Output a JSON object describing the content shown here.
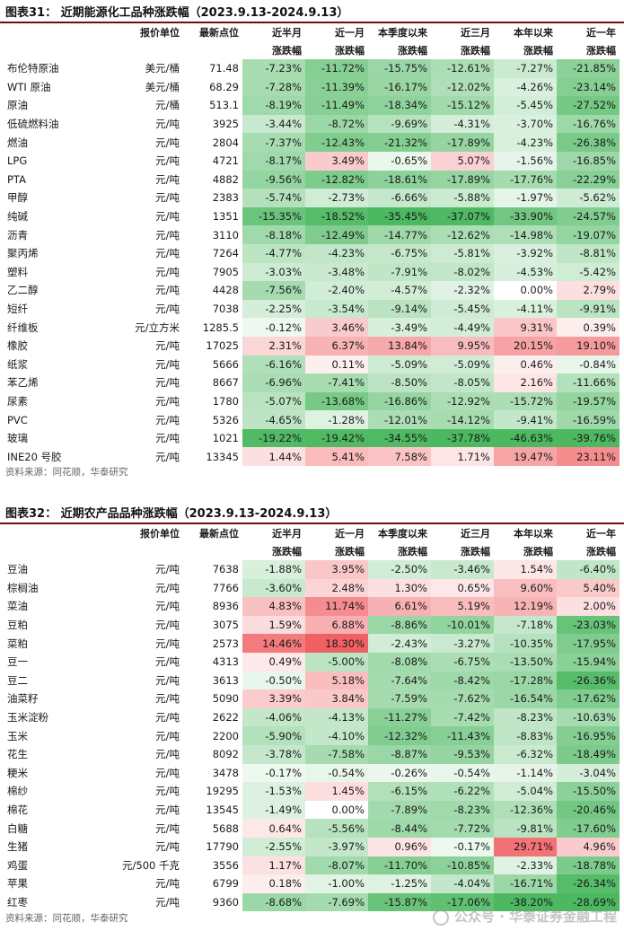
{
  "table1": {
    "title": "图表31：   近期能源化工品种涨跌幅（2023.9.13-2024.9.13）",
    "source": "资料来源：同花顺，华泰研究",
    "headers_top": [
      "",
      "报价单位",
      "最新点位",
      "近半月",
      "近一月",
      "本季度以来",
      "近三月",
      "本年以来",
      "近一年"
    ],
    "headers_bottom": [
      "",
      "",
      "",
      "涨跌幅",
      "涨跌幅",
      "涨跌幅",
      "涨跌幅",
      "涨跌幅",
      "涨跌幅"
    ],
    "rows": [
      {
        "name": "布伦特原油",
        "unit": "美元/桶",
        "last": "71.48",
        "vals": [
          "-7.23%",
          "-11.72%",
          "-15.75%",
          "-12.61%",
          "-7.27%",
          "-21.85%"
        ]
      },
      {
        "name": "WTI 原油",
        "unit": "美元/桶",
        "last": "68.29",
        "vals": [
          "-7.28%",
          "-11.39%",
          "-16.17%",
          "-12.02%",
          "-4.26%",
          "-23.14%"
        ]
      },
      {
        "name": "原油",
        "unit": "元/桶",
        "last": "513.1",
        "vals": [
          "-8.19%",
          "-11.49%",
          "-18.34%",
          "-15.12%",
          "-5.45%",
          "-27.52%"
        ]
      },
      {
        "name": "低硫燃料油",
        "unit": "元/吨",
        "last": "3925",
        "vals": [
          "-3.44%",
          "-8.72%",
          "-9.69%",
          "-4.31%",
          "-3.70%",
          "-16.76%"
        ]
      },
      {
        "name": "燃油",
        "unit": "元/吨",
        "last": "2804",
        "vals": [
          "-7.37%",
          "-12.43%",
          "-21.32%",
          "-17.89%",
          "-4.23%",
          "-26.38%"
        ]
      },
      {
        "name": "LPG",
        "unit": "元/吨",
        "last": "4721",
        "vals": [
          "-8.17%",
          "3.49%",
          "-0.65%",
          "5.07%",
          "-1.56%",
          "-16.85%"
        ]
      },
      {
        "name": "PTA",
        "unit": "元/吨",
        "last": "4882",
        "vals": [
          "-9.56%",
          "-12.82%",
          "-18.61%",
          "-17.89%",
          "-17.76%",
          "-22.29%"
        ]
      },
      {
        "name": "甲醇",
        "unit": "元/吨",
        "last": "2383",
        "vals": [
          "-5.74%",
          "-2.73%",
          "-6.66%",
          "-5.88%",
          "-1.97%",
          "-5.62%"
        ]
      },
      {
        "name": "纯碱",
        "unit": "元/吨",
        "last": "1351",
        "vals": [
          "-15.35%",
          "-18.52%",
          "-35.45%",
          "-37.07%",
          "-33.90%",
          "-24.57%"
        ]
      },
      {
        "name": "沥青",
        "unit": "元/吨",
        "last": "3110",
        "vals": [
          "-8.18%",
          "-12.49%",
          "-14.77%",
          "-12.62%",
          "-14.98%",
          "-19.07%"
        ]
      },
      {
        "name": "聚丙烯",
        "unit": "元/吨",
        "last": "7264",
        "vals": [
          "-4.77%",
          "-4.23%",
          "-6.75%",
          "-5.81%",
          "-3.92%",
          "-8.81%"
        ]
      },
      {
        "name": "塑料",
        "unit": "元/吨",
        "last": "7905",
        "vals": [
          "-3.03%",
          "-3.48%",
          "-7.91%",
          "-8.02%",
          "-4.53%",
          "-5.42%"
        ]
      },
      {
        "name": "乙二醇",
        "unit": "元/吨",
        "last": "4428",
        "vals": [
          "-7.56%",
          "-2.40%",
          "-4.57%",
          "-2.32%",
          "0.00%",
          "2.79%"
        ]
      },
      {
        "name": "短纤",
        "unit": "元/吨",
        "last": "7038",
        "vals": [
          "-2.25%",
          "-3.54%",
          "-9.14%",
          "-5.45%",
          "-4.11%",
          "-9.91%"
        ]
      },
      {
        "name": "纤维板",
        "unit": "元/立方米",
        "last": "1285.5",
        "vals": [
          "-0.12%",
          "3.46%",
          "-3.49%",
          "-4.49%",
          "9.31%",
          "0.39%"
        ]
      },
      {
        "name": "橡胶",
        "unit": "元/吨",
        "last": "17025",
        "vals": [
          "2.31%",
          "6.37%",
          "13.84%",
          "9.95%",
          "20.15%",
          "19.10%"
        ]
      },
      {
        "name": "纸浆",
        "unit": "元/吨",
        "last": "5666",
        "vals": [
          "-6.16%",
          "0.11%",
          "-5.09%",
          "-5.09%",
          "0.46%",
          "-0.84%"
        ]
      },
      {
        "name": "苯乙烯",
        "unit": "元/吨",
        "last": "8667",
        "vals": [
          "-6.96%",
          "-7.41%",
          "-8.50%",
          "-8.05%",
          "2.16%",
          "-11.66%"
        ]
      },
      {
        "name": "尿素",
        "unit": "元/吨",
        "last": "1780",
        "vals": [
          "-5.07%",
          "-13.68%",
          "-16.86%",
          "-12.92%",
          "-15.72%",
          "-19.57%"
        ]
      },
      {
        "name": "PVC",
        "unit": "元/吨",
        "last": "5326",
        "vals": [
          "-4.65%",
          "-1.28%",
          "-12.01%",
          "-14.12%",
          "-9.41%",
          "-16.59%"
        ]
      },
      {
        "name": "玻璃",
        "unit": "元/吨",
        "last": "1021",
        "vals": [
          "-19.22%",
          "-19.42%",
          "-34.55%",
          "-37.78%",
          "-46.63%",
          "-39.76%"
        ]
      },
      {
        "name": "INE20 号胶",
        "unit": "元/吨",
        "last": "13345",
        "vals": [
          "1.44%",
          "5.41%",
          "7.58%",
          "1.71%",
          "19.47%",
          "23.11%"
        ]
      }
    ]
  },
  "table2": {
    "title": "图表32：   近期农产品品种涨跌幅（2023.9.13-2024.9.13）",
    "source": "资料来源：同花顺，华泰研究",
    "headers_top": [
      "",
      "报价单位",
      "最新点位",
      "近半月",
      "近一月",
      "本季度以来",
      "近三月",
      "本年以来",
      "近一年"
    ],
    "headers_bottom": [
      "",
      "",
      "",
      "涨跌幅",
      "涨跌幅",
      "涨跌幅",
      "涨跌幅",
      "涨跌幅",
      "涨跌幅"
    ],
    "rows": [
      {
        "name": "豆油",
        "unit": "元/吨",
        "last": "7638",
        "vals": [
          "-1.88%",
          "3.95%",
          "-2.50%",
          "-3.46%",
          "1.54%",
          "-6.40%"
        ]
      },
      {
        "name": "棕榈油",
        "unit": "元/吨",
        "last": "7766",
        "vals": [
          "-3.60%",
          "2.48%",
          "1.30%",
          "0.65%",
          "9.60%",
          "5.40%"
        ]
      },
      {
        "name": "菜油",
        "unit": "元/吨",
        "last": "8936",
        "vals": [
          "4.83%",
          "11.74%",
          "6.61%",
          "5.19%",
          "12.19%",
          "2.00%"
        ]
      },
      {
        "name": "豆粕",
        "unit": "元/吨",
        "last": "3075",
        "vals": [
          "1.59%",
          "6.88%",
          "-8.86%",
          "-10.01%",
          "-7.18%",
          "-23.03%"
        ]
      },
      {
        "name": "菜粕",
        "unit": "元/吨",
        "last": "2573",
        "vals": [
          "14.46%",
          "18.30%",
          "-2.43%",
          "-3.27%",
          "-10.35%",
          "-17.95%"
        ]
      },
      {
        "name": "豆一",
        "unit": "元/吨",
        "last": "4313",
        "vals": [
          "0.49%",
          "-5.00%",
          "-8.08%",
          "-6.75%",
          "-13.50%",
          "-15.94%"
        ]
      },
      {
        "name": "豆二",
        "unit": "元/吨",
        "last": "3613",
        "vals": [
          "-0.50%",
          "5.18%",
          "-7.64%",
          "-8.42%",
          "-17.28%",
          "-26.36%"
        ]
      },
      {
        "name": "油菜籽",
        "unit": "元/吨",
        "last": "5090",
        "vals": [
          "3.39%",
          "3.84%",
          "-7.59%",
          "-7.62%",
          "-16.54%",
          "-17.62%"
        ]
      },
      {
        "name": "玉米淀粉",
        "unit": "元/吨",
        "last": "2622",
        "vals": [
          "-4.06%",
          "-4.13%",
          "-11.27%",
          "-7.42%",
          "-8.23%",
          "-10.63%"
        ]
      },
      {
        "name": "玉米",
        "unit": "元/吨",
        "last": "2200",
        "vals": [
          "-5.90%",
          "-4.10%",
          "-12.32%",
          "-11.43%",
          "-8.83%",
          "-16.95%"
        ]
      },
      {
        "name": "花生",
        "unit": "元/吨",
        "last": "8092",
        "vals": [
          "-3.78%",
          "-7.58%",
          "-8.87%",
          "-9.53%",
          "-6.32%",
          "-18.49%"
        ]
      },
      {
        "name": "粳米",
        "unit": "元/吨",
        "last": "3478",
        "vals": [
          "-0.17%",
          "-0.54%",
          "-0.26%",
          "-0.54%",
          "-1.14%",
          "-3.04%"
        ]
      },
      {
        "name": "棉纱",
        "unit": "元/吨",
        "last": "19295",
        "vals": [
          "-1.53%",
          "1.45%",
          "-6.15%",
          "-6.22%",
          "-5.04%",
          "-15.50%"
        ]
      },
      {
        "name": "棉花",
        "unit": "元/吨",
        "last": "13545",
        "vals": [
          "-1.49%",
          "0.00%",
          "-7.89%",
          "-8.23%",
          "-12.36%",
          "-20.46%"
        ]
      },
      {
        "name": "白糖",
        "unit": "元/吨",
        "last": "5688",
        "vals": [
          "0.64%",
          "-5.56%",
          "-8.44%",
          "-7.72%",
          "-9.81%",
          "-17.60%"
        ]
      },
      {
        "name": "生猪",
        "unit": "元/吨",
        "last": "17790",
        "vals": [
          "-2.55%",
          "-3.97%",
          "0.96%",
          "-0.17%",
          "29.71%",
          "4.96%"
        ]
      },
      {
        "name": "鸡蛋",
        "unit": "元/500 千克",
        "last": "3556",
        "vals": [
          "1.17%",
          "-8.07%",
          "-11.70%",
          "-10.85%",
          "-2.33%",
          "-18.78%"
        ]
      },
      {
        "name": "苹果",
        "unit": "元/吨",
        "last": "6799",
        "vals": [
          "0.18%",
          "-1.00%",
          "-1.25%",
          "-4.04%",
          "-16.71%",
          "-26.34%"
        ]
      },
      {
        "name": "红枣",
        "unit": "元/吨",
        "last": "9360",
        "vals": [
          "-8.68%",
          "-7.69%",
          "-15.87%",
          "-17.06%",
          "-38.20%",
          "-28.69%"
        ]
      }
    ]
  },
  "watermark": "公众号 · 华泰证券金融工程",
  "colors": {
    "title_rule": "#7a0a0a",
    "pos_strong": "#f0565a",
    "neg_strong": "#4cb860"
  }
}
